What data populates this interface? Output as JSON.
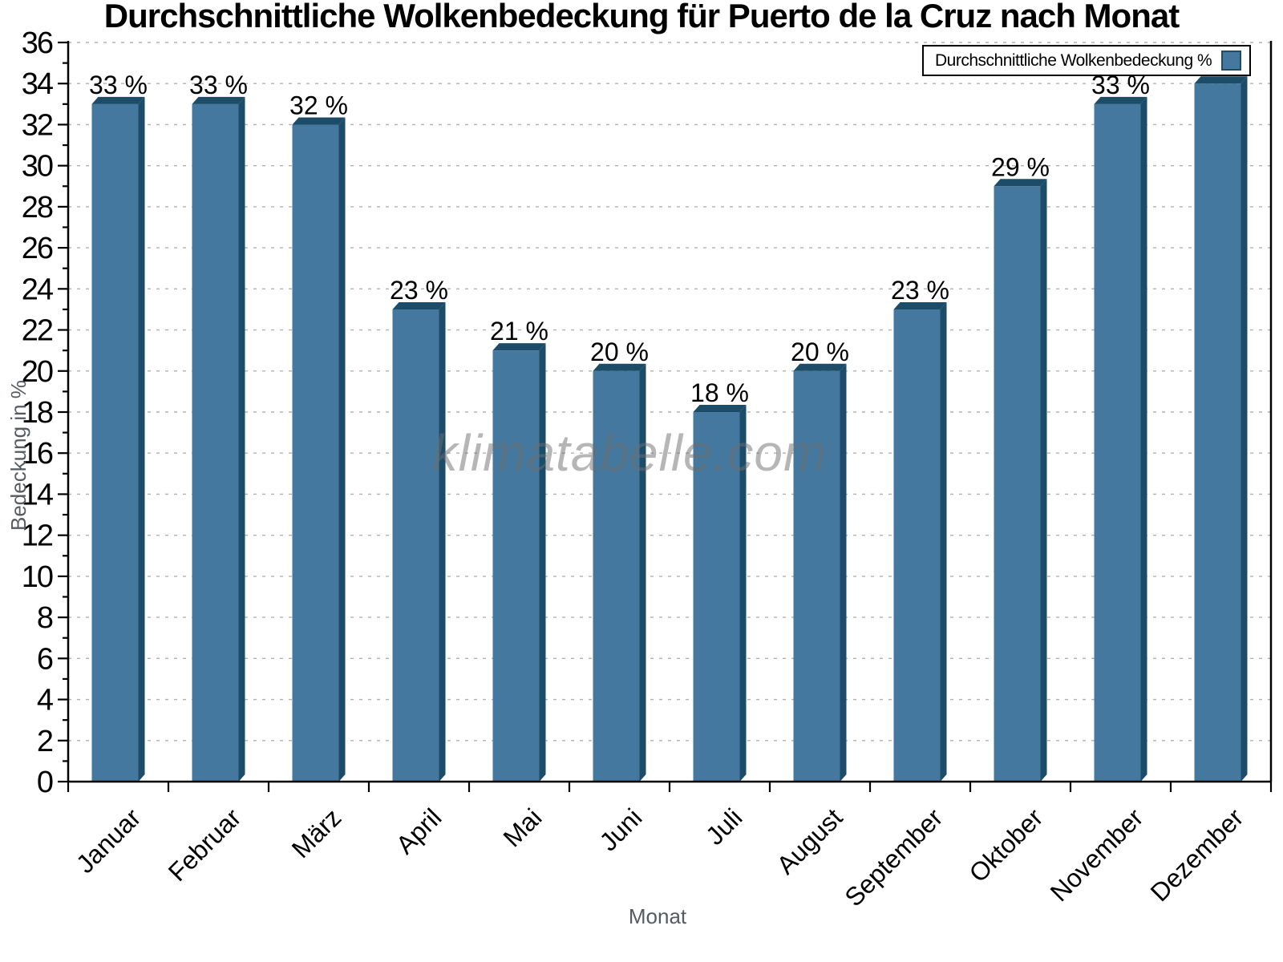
{
  "watermark": {
    "text": "klimatabelle.com"
  },
  "chart_data": {
    "type": "bar",
    "title": "Durchschnittliche Wolkenbedeckung für Puerto de la Cruz nach Monat",
    "xlabel": "Monat",
    "ylabel": "Bedeckung in %",
    "categories": [
      "Januar",
      "Februar",
      "März",
      "April",
      "Mai",
      "Juni",
      "Juli",
      "August",
      "September",
      "Oktober",
      "November",
      "Dezember"
    ],
    "values": [
      33,
      33,
      32,
      23,
      21,
      20,
      18,
      20,
      23,
      29,
      33,
      34
    ],
    "value_suffix": " %",
    "legend": [
      "Durchschnittliche Wolkenbedeckung %"
    ],
    "legend_position": "top-right",
    "ylim": [
      0,
      36
    ],
    "ytick_step": 2,
    "grid": true,
    "colors": {
      "bar_front": "#44789E",
      "bar_shadow": "#1C4C68",
      "gridline": "#b0b0b0",
      "axis": "#000000",
      "axis_title": "#545b61"
    }
  }
}
